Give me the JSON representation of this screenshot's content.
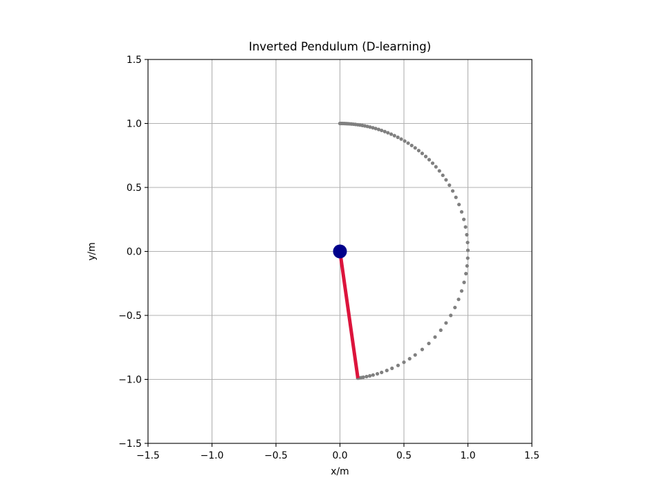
{
  "chart_data": {
    "type": "scatter",
    "title": "Inverted Pendulum (D-learning)",
    "xlabel": "x/m",
    "ylabel": "y/m",
    "xlim": [
      -1.5,
      1.5
    ],
    "ylim": [
      -1.5,
      1.5
    ],
    "grid": true,
    "x_ticks": [
      -1.5,
      -1.0,
      -0.5,
      0.0,
      0.5,
      1.0,
      1.5
    ],
    "y_ticks": [
      -1.5,
      -1.0,
      -0.5,
      0.0,
      0.5,
      1.0,
      1.5
    ],
    "x_tick_labels": [
      "−1.5",
      "−1.0",
      "−0.5",
      "0.0",
      "0.5",
      "1.0",
      "1.5"
    ],
    "y_tick_labels": [
      "−1.5",
      "−1.0",
      "−0.5",
      "0.0",
      "0.5",
      "1.0",
      "1.5"
    ],
    "pivot": {
      "x": 0.0,
      "y": 0.0
    },
    "rod": {
      "x": [
        0.0,
        0.14
      ],
      "y": [
        0.0,
        -0.99
      ]
    },
    "trajectory_angles_deg": [
      0,
      0.5,
      1,
      1.6,
      2.2,
      2.9,
      3.6,
      4.4,
      5.2,
      6.1,
      7.0,
      8.0,
      9.0,
      10.1,
      11.2,
      12.4,
      13.6,
      14.9,
      16.2,
      17.6,
      19.0,
      20.5,
      22.0,
      23.6,
      25.2,
      26.9,
      28.6,
      30.4,
      32.2,
      34.1,
      36.0,
      38.0,
      40.0,
      42.1,
      44.2,
      46.4,
      48.6,
      51.0,
      53.5,
      56.0,
      58.8,
      61.8,
      65.0,
      68.5,
      72.0,
      75.5,
      79.0,
      82.5,
      86.0,
      89.5,
      93.0,
      96.5,
      100.0,
      104.0,
      108.0,
      112.0,
      116.0,
      120.0,
      124.0,
      128.0,
      132.0,
      136.0,
      140.0,
      144.0,
      147.0,
      150.0,
      153.0,
      156.0,
      158.5,
      161.0,
      163.0,
      165.0,
      166.5,
      168.0,
      169.5,
      170.5,
      171.3,
      171.8,
      172.0
    ],
    "colors": {
      "trajectory": "#808080",
      "rod": "#dc143c",
      "pivot": "#00008b",
      "grid": "#b0b0b0"
    }
  }
}
